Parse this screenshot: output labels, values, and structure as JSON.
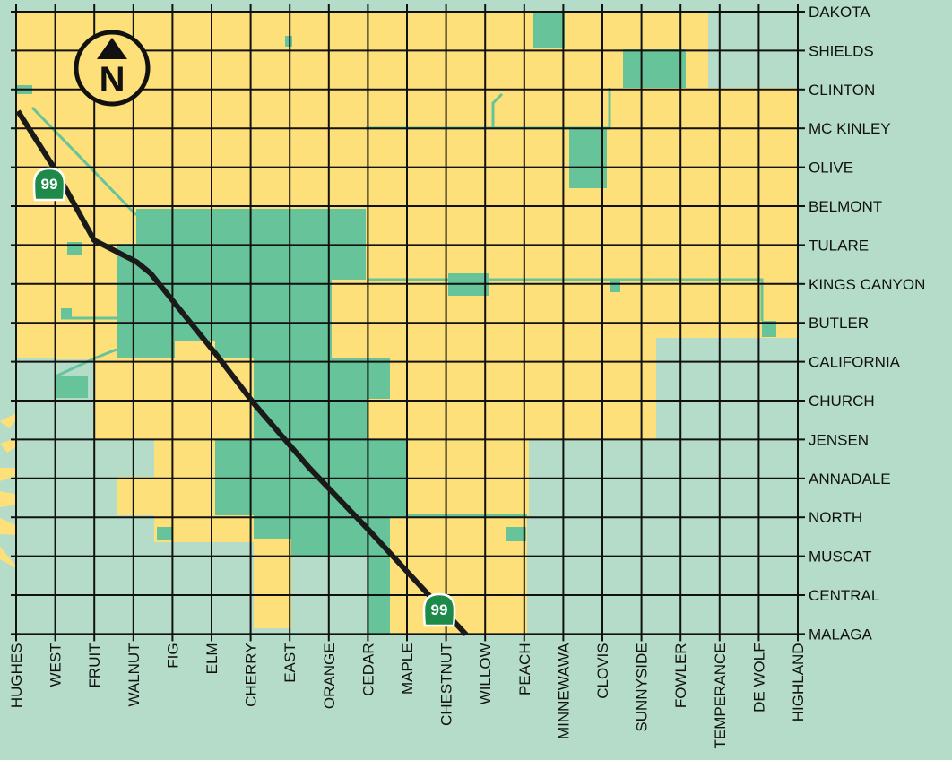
{
  "map": {
    "colors": {
      "background": "#b4dcc8",
      "yellow_zone": "#fde07a",
      "green_zone": "#66c39a",
      "grid": "#111111",
      "highway": "#1a1a1a",
      "shield": "#1e8a4a",
      "sunburst": "#fde07a"
    },
    "east_west_streets": [
      "DAKOTA",
      "SHIELDS",
      "CLINTON",
      "MC KINLEY",
      "OLIVE",
      "BELMONT",
      "TULARE",
      "KINGS CANYON",
      "BUTLER",
      "CALIFORNIA",
      "CHURCH",
      "JENSEN",
      "ANNADALE",
      "NORTH",
      "MUSCAT",
      "CENTRAL",
      "MALAGA"
    ],
    "north_south_streets": [
      "HUGHES",
      "WEST",
      "FRUIT",
      "WALNUT",
      "FIG",
      "ELM",
      "CHERRY",
      "EAST",
      "ORANGE",
      "CEDAR",
      "MAPLE",
      "CHESTNUT",
      "WILLOW",
      "PEACH",
      "MINNEWAWA",
      "CLOVIS",
      "SUNNYSIDE",
      "FOWLER",
      "TEMPERANCE",
      "DE WOLF",
      "HIGHLAND"
    ],
    "highway": {
      "route": "99"
    },
    "compass": {
      "letter": "N",
      "icon": "north-arrow-icon"
    }
  }
}
